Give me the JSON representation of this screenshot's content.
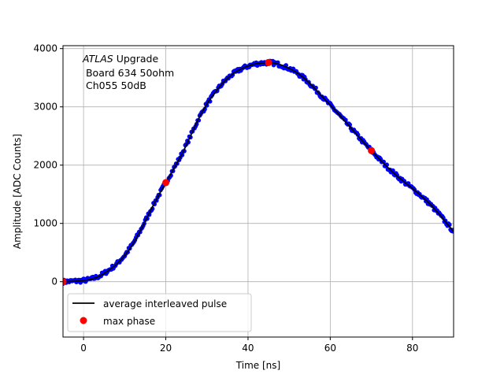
{
  "chart_data": {
    "type": "scatter",
    "title": "",
    "xlabel": "Time [ns]",
    "ylabel": "Amplitude [ADC Counts]",
    "xlim": [
      -5,
      90
    ],
    "ylim": [
      -950,
      4050
    ],
    "xticks": [
      0,
      20,
      40,
      60,
      80
    ],
    "yticks": [
      0,
      1000,
      2000,
      3000,
      4000
    ],
    "grid": true,
    "legend_position": "lower-left",
    "annotation": {
      "line1_italic": "ATLAS",
      "line1_rest": " Upgrade",
      "line2": " Board 634 50ohm",
      "line3": " Ch055 50dB"
    },
    "series": [
      {
        "name": "average interleaved pulse",
        "style": "line",
        "color": "#000000",
        "x": [
          -5,
          -2,
          0,
          2,
          4,
          6,
          8,
          10,
          12,
          14,
          16,
          18,
          20,
          22,
          24,
          26,
          28,
          30,
          32,
          34,
          36,
          38,
          40,
          42,
          44,
          45,
          46,
          48,
          50,
          52,
          54,
          56,
          58,
          60,
          62,
          64,
          66,
          68,
          70,
          72,
          74,
          76,
          78,
          80,
          82,
          84,
          86,
          88,
          90
        ],
        "y": [
          0,
          10,
          20,
          45,
          100,
          190,
          300,
          450,
          650,
          900,
          1180,
          1450,
          1700,
          1950,
          2200,
          2500,
          2800,
          3050,
          3250,
          3420,
          3550,
          3640,
          3700,
          3740,
          3755,
          3760,
          3755,
          3720,
          3660,
          3580,
          3470,
          3330,
          3180,
          3030,
          2880,
          2720,
          2560,
          2400,
          2250,
          2100,
          1960,
          1830,
          1710,
          1600,
          1480,
          1350,
          1200,
          1030,
          860
        ]
      },
      {
        "name": "",
        "style": "scatter-dense",
        "color": "#0000ff",
        "note_fn": "samples of the interleaved pulse, one every 0.25 ns across the axis range"
      },
      {
        "name": "max phase",
        "style": "scatter",
        "color": "#ff0000",
        "x": [
          -5,
          20,
          45,
          70
        ],
        "y": [
          0,
          1700,
          3760,
          2250
        ]
      }
    ]
  }
}
